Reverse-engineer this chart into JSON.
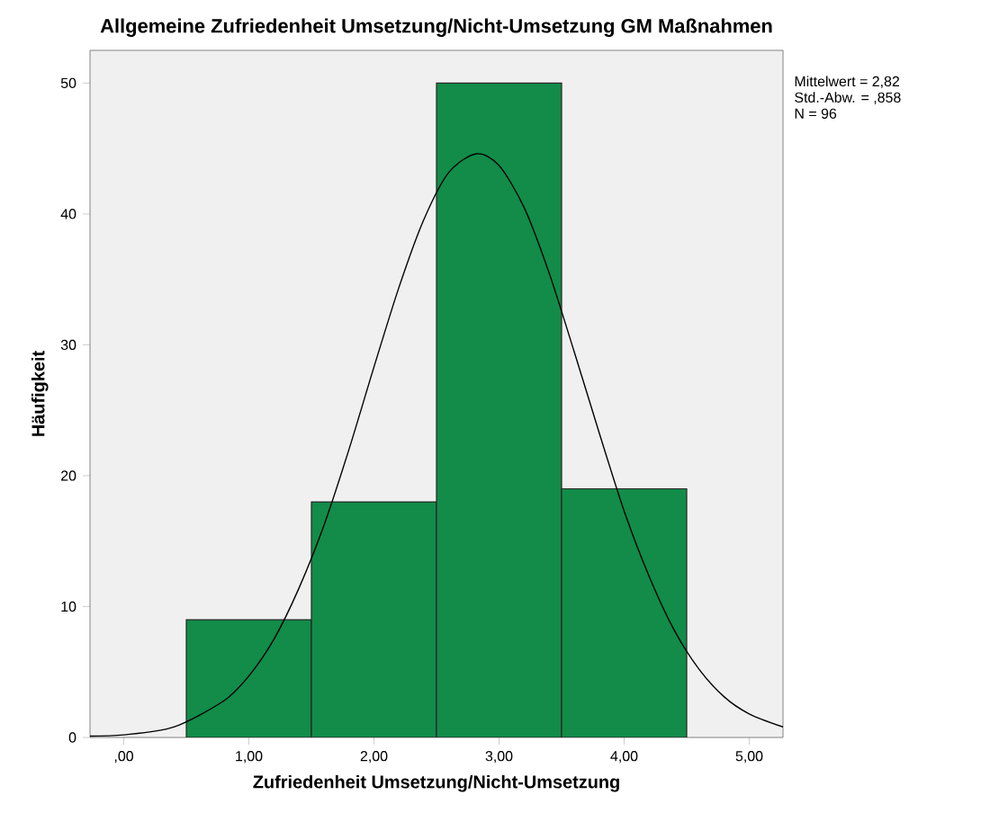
{
  "chart_data": {
    "type": "histogram",
    "title": "Allgemeine Zufriedenheit Umsetzung/Nicht-Umsetzung GM Maßnahmen",
    "xlabel": "Zufriedenheit Umsetzung/Nicht-Umsetzung",
    "ylabel": "Häufigkeit",
    "bins": [
      0.5,
      1.5,
      2.5,
      3.5,
      4.5
    ],
    "values": [
      9,
      18,
      50,
      19
    ],
    "color": "#128c48",
    "series": [
      {
        "type": "line",
        "color": "#000000",
        "x": [
          -0.27,
          0,
          0.4,
          0.8,
          1.0,
          1.2,
          1.4,
          1.6,
          1.8,
          2.0,
          2.2,
          2.4,
          2.6,
          2.82,
          3.0,
          3.2,
          3.4,
          3.6,
          3.8,
          4.0,
          4.2,
          4.4,
          4.6,
          4.8,
          5.0,
          5.27
        ],
        "values": [
          0.1,
          0.2,
          0.8,
          2.8,
          4.7,
          7.5,
          11.4,
          16.2,
          22.0,
          28.3,
          34.4,
          39.6,
          43.2,
          44.6,
          43.7,
          40.5,
          35.5,
          29.5,
          23.3,
          17.3,
          12.3,
          8.2,
          5.2,
          3.1,
          1.8,
          0.8
        ]
      }
    ],
    "xlim": [
      -0.27,
      5.27
    ],
    "ylim": [
      0,
      52.5
    ],
    "xticks": [
      {
        "value": 0,
        "label": ",00"
      },
      {
        "value": 1,
        "label": "1,00"
      },
      {
        "value": 2,
        "label": "2,00"
      },
      {
        "value": 3,
        "label": "3,00"
      },
      {
        "value": 4,
        "label": "4,00"
      },
      {
        "value": 5,
        "label": "5,00"
      }
    ],
    "yticks": [
      0,
      10,
      20,
      30,
      40,
      50
    ],
    "annotations": [
      "Mittelwert = 2,82",
      "Std.-Abw. = ,858",
      "N = 96"
    ]
  }
}
